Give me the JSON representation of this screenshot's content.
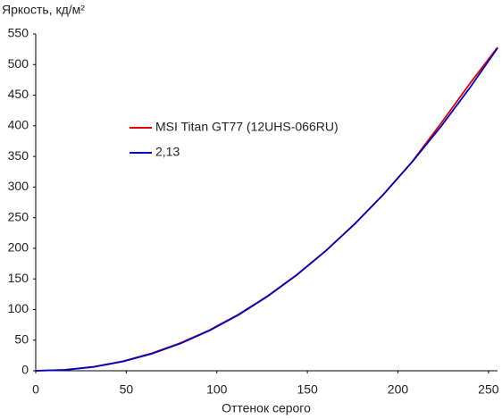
{
  "chart_data": {
    "type": "line",
    "y_label": "Яркость, кд/м²",
    "x_label": "Оттенок серого",
    "x": [
      0,
      16,
      32,
      48,
      64,
      80,
      96,
      112,
      128,
      144,
      160,
      176,
      192,
      208,
      224,
      240,
      255
    ],
    "series": [
      {
        "name": "MSI Titan GT77 (12UHS-066RU)",
        "color": "#e00000",
        "values": [
          0,
          1.5,
          6.5,
          15.5,
          28.5,
          45.5,
          66.5,
          92,
          122,
          156.5,
          195.5,
          239.5,
          288,
          342,
          405,
          470,
          528
        ]
      },
      {
        "name": "2,13",
        "color": "#0000c0",
        "values": [
          0,
          1.4,
          6.3,
          15.0,
          27.7,
          44.6,
          65.8,
          91.3,
          121.4,
          156.0,
          195.3,
          239.3,
          287.9,
          341.5,
          399.8,
          463.2,
          527
        ]
      }
    ],
    "xlim": [
      0,
      255
    ],
    "ylim": [
      0,
      550
    ],
    "xticks": [
      0,
      50,
      100,
      150,
      200,
      250
    ],
    "yticks": [
      0,
      50,
      100,
      150,
      200,
      250,
      300,
      350,
      400,
      450,
      500,
      550
    ],
    "grid": false
  }
}
